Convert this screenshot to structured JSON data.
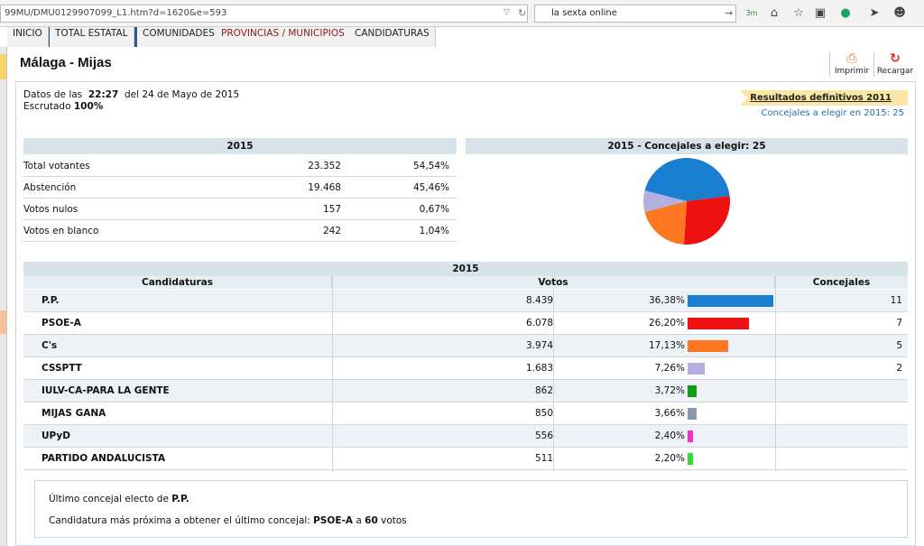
{
  "browser": {
    "url": "99MU/DMU0129907099_L1.htm?d=1620&e=593",
    "search_value": "la sexta online",
    "toolbar_icons": [
      "3m-icon",
      "home-icon",
      "star-icon",
      "clipboard-icon",
      "grammarly-icon",
      "send-icon",
      "chat-icon"
    ],
    "badge_3m": "3m"
  },
  "tabs": [
    {
      "label": "INICIO"
    },
    {
      "label": "TOTAL ESTATAL"
    },
    {
      "label": "COMUNIDADES"
    },
    {
      "label": "PROVINCIAS / MUNICIPIOS",
      "active": true
    },
    {
      "label": "CANDIDATURAS"
    }
  ],
  "page": {
    "title": "Málaga - Mijas",
    "print_label": "Imprimir",
    "reload_label": "Recargar"
  },
  "meta": {
    "date_prefix": "Datos de las",
    "time": "22:27",
    "date_suffix": "del 24 de Mayo de 2015",
    "scrutiny_label": "Escrutado",
    "scrutiny_value": "100%",
    "final_results_link": "Resultados definitivos 2011",
    "councillors_text": "Concejales a elegir en 2015: 25"
  },
  "summary": {
    "header": "2015",
    "rows": [
      {
        "label": "Total votantes",
        "count": "23.352",
        "pct": "54,54%"
      },
      {
        "label": "Abstención",
        "count": "19.468",
        "pct": "45,46%"
      },
      {
        "label": "Votos nulos",
        "count": "157",
        "pct": "0,67%"
      },
      {
        "label": "Votos en blanco",
        "count": "242",
        "pct": "1,04%"
      }
    ]
  },
  "pie_header": "2015 - Concejales a elegir: 25",
  "results": {
    "header": "2015",
    "col_candidaturas": "Candidaturas",
    "col_votos": "Votos",
    "col_concejales": "Concejales",
    "rows": [
      {
        "name": "P.P.",
        "votes": "8.439",
        "pct": "36,38%",
        "pct_value": 36.38,
        "seats": "11",
        "color": "#1a7fd0"
      },
      {
        "name": "PSOE-A",
        "votes": "6.078",
        "pct": "26,20%",
        "pct_value": 26.2,
        "seats": "7",
        "color": "#ee1111"
      },
      {
        "name": "C's",
        "votes": "3.974",
        "pct": "17,13%",
        "pct_value": 17.13,
        "seats": "5",
        "color": "#ff7722"
      },
      {
        "name": "CSSPTT",
        "votes": "1.683",
        "pct": "7,26%",
        "pct_value": 7.26,
        "seats": "2",
        "color": "#b3b0e0"
      },
      {
        "name": "IULV-CA-PARA LA GENTE",
        "votes": "862",
        "pct": "3,72%",
        "pct_value": 3.72,
        "seats": "",
        "color": "#11a011"
      },
      {
        "name": "MIJAS GANA",
        "votes": "850",
        "pct": "3,66%",
        "pct_value": 3.66,
        "seats": "",
        "color": "#8899aa"
      },
      {
        "name": "UPyD",
        "votes": "556",
        "pct": "2,40%",
        "pct_value": 2.4,
        "seats": "",
        "color": "#ee33cc"
      },
      {
        "name": "PARTIDO ANDALUCISTA",
        "votes": "511",
        "pct": "2,20%",
        "pct_value": 2.2,
        "seats": "",
        "color": "#33dd33"
      }
    ]
  },
  "note": {
    "line1_prefix": "Último concejal electo de",
    "line1_party": "P.P.",
    "line2_prefix": "Candidatura más próxima a obtener el último concejal:",
    "line2_party": "PSOE-A",
    "line2_mid": "a",
    "line2_votes": "60",
    "line2_suffix": "votos"
  }
}
